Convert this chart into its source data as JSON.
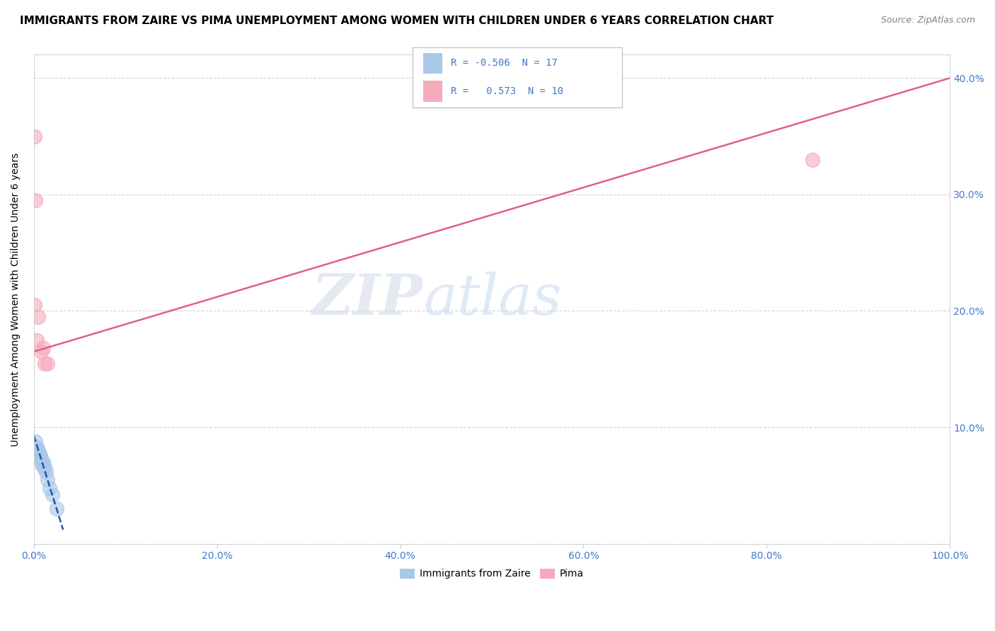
{
  "title": "IMMIGRANTS FROM ZAIRE VS PIMA UNEMPLOYMENT AMONG WOMEN WITH CHILDREN UNDER 6 YEARS CORRELATION CHART",
  "source": "Source: ZipAtlas.com",
  "ylabel": "Unemployment Among Women with Children Under 6 years",
  "background_color": "#ffffff",
  "plot_bg_color": "#ffffff",
  "grid_color": "#cccccc",
  "watermark_zip": "ZIP",
  "watermark_atlas": "atlas",
  "blue_scatter_x": [
    0.001,
    0.002,
    0.003,
    0.004,
    0.005,
    0.006,
    0.007,
    0.008,
    0.009,
    0.01,
    0.011,
    0.012,
    0.013,
    0.015,
    0.017,
    0.02,
    0.025
  ],
  "blue_scatter_y": [
    0.082,
    0.088,
    0.083,
    0.079,
    0.08,
    0.077,
    0.075,
    0.072,
    0.068,
    0.07,
    0.067,
    0.065,
    0.062,
    0.055,
    0.048,
    0.042,
    0.03
  ],
  "pink_scatter_x": [
    0.001,
    0.002,
    0.005,
    0.008,
    0.01,
    0.012,
    0.015,
    0.85,
    0.001,
    0.003
  ],
  "pink_scatter_y": [
    0.35,
    0.295,
    0.195,
    0.165,
    0.168,
    0.155,
    0.155,
    0.33,
    0.205,
    0.175
  ],
  "blue_line_x": [
    0.0,
    0.032
  ],
  "blue_line_y": [
    0.093,
    0.012
  ],
  "pink_line_x": [
    0.0,
    1.0
  ],
  "pink_line_y": [
    0.165,
    0.4
  ],
  "blue_color": "#aac8e8",
  "pink_color": "#f5aabc",
  "blue_line_color": "#2255aa",
  "pink_line_color": "#e06080",
  "R_blue": "-0.506",
  "N_blue": "17",
  "R_pink": "0.573",
  "N_pink": "10",
  "legend_label_blue": "Immigrants from Zaire",
  "legend_label_pink": "Pima",
  "xlim": [
    0.0,
    1.0
  ],
  "ylim": [
    0.0,
    0.42
  ],
  "xtick_vals": [
    0.0,
    0.2,
    0.4,
    0.6,
    0.8,
    1.0
  ],
  "xtick_labels": [
    "0.0%",
    "20.0%",
    "40.0%",
    "60.0%",
    "80.0%",
    "100.0%"
  ],
  "ytick_vals_left": [
    0.0,
    0.1,
    0.2,
    0.3,
    0.4
  ],
  "ytick_labels_left": [
    "",
    "",
    "",
    "",
    ""
  ],
  "ytick_vals_right": [
    0.1,
    0.2,
    0.3,
    0.4
  ],
  "ytick_labels_right": [
    "10.0%",
    "20.0%",
    "30.0%",
    "40.0%"
  ],
  "title_fontsize": 11,
  "axis_label_fontsize": 10,
  "tick_fontsize": 10,
  "legend_fontsize": 10,
  "source_fontsize": 9,
  "scatter_size": 200,
  "line_width": 1.8,
  "tick_color": "#4477cc",
  "axis_color": "#cccccc"
}
